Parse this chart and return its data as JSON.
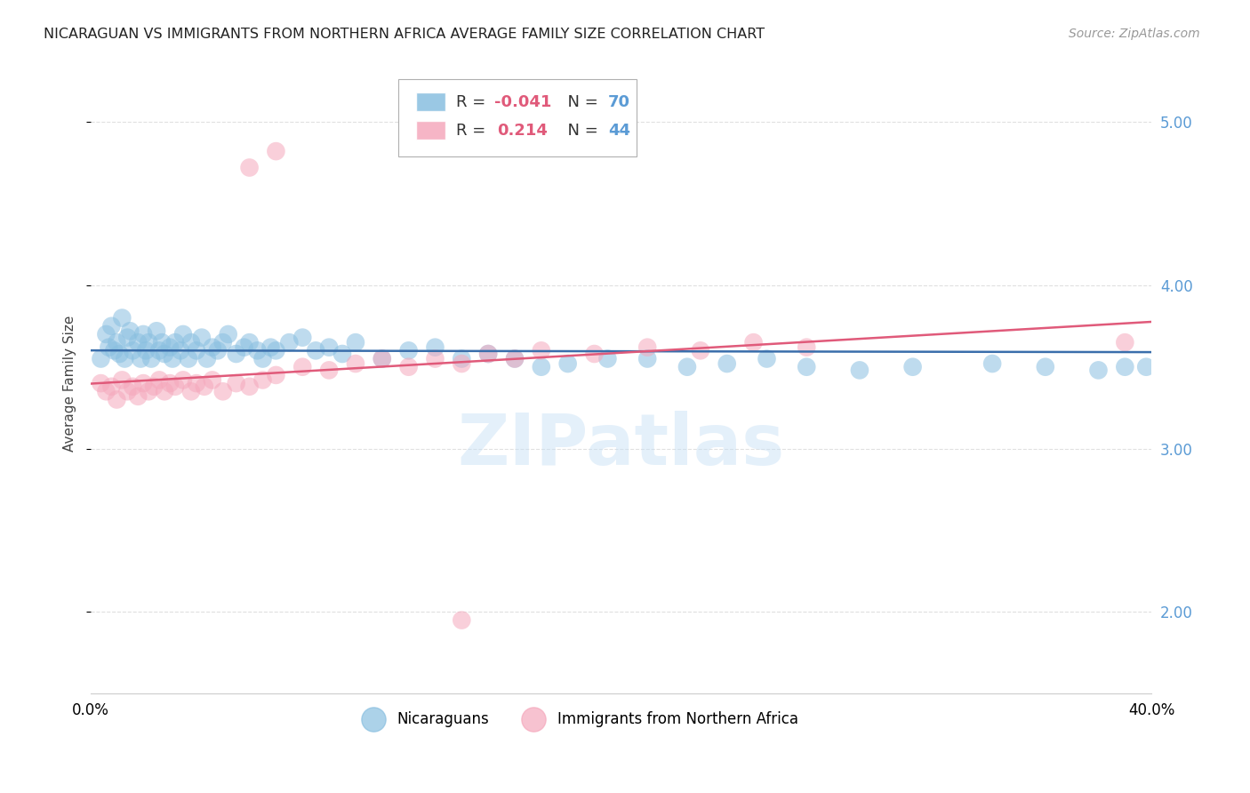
{
  "title": "NICARAGUAN VS IMMIGRANTS FROM NORTHERN AFRICA AVERAGE FAMILY SIZE CORRELATION CHART",
  "source": "Source: ZipAtlas.com",
  "ylabel": "Average Family Size",
  "xlim": [
    0.0,
    0.4
  ],
  "ylim": [
    1.5,
    5.3
  ],
  "yticks": [
    2.0,
    3.0,
    4.0,
    5.0
  ],
  "xticks": [
    0.0,
    0.1,
    0.2,
    0.3,
    0.4
  ],
  "xtick_labels": [
    "0.0%",
    "",
    "",
    "",
    "40.0%"
  ],
  "blue_color": "#89bfe0",
  "pink_color": "#f5a8bc",
  "blue_line_color": "#3a6eab",
  "pink_line_color": "#e05a7a",
  "blue_R": -0.041,
  "blue_N": 70,
  "pink_R": 0.214,
  "pink_N": 44,
  "blue_scatter_x": [
    0.004,
    0.006,
    0.007,
    0.008,
    0.009,
    0.01,
    0.011,
    0.012,
    0.013,
    0.014,
    0.015,
    0.016,
    0.018,
    0.019,
    0.02,
    0.021,
    0.022,
    0.023,
    0.025,
    0.026,
    0.027,
    0.028,
    0.03,
    0.031,
    0.032,
    0.034,
    0.035,
    0.037,
    0.038,
    0.04,
    0.042,
    0.044,
    0.046,
    0.048,
    0.05,
    0.052,
    0.055,
    0.058,
    0.06,
    0.063,
    0.065,
    0.068,
    0.07,
    0.075,
    0.08,
    0.085,
    0.09,
    0.095,
    0.1,
    0.11,
    0.12,
    0.13,
    0.14,
    0.15,
    0.16,
    0.17,
    0.18,
    0.195,
    0.21,
    0.225,
    0.24,
    0.255,
    0.27,
    0.29,
    0.31,
    0.34,
    0.36,
    0.38,
    0.39,
    0.398
  ],
  "blue_scatter_y": [
    3.55,
    3.7,
    3.62,
    3.75,
    3.6,
    3.65,
    3.58,
    3.8,
    3.55,
    3.68,
    3.72,
    3.6,
    3.65,
    3.55,
    3.7,
    3.6,
    3.65,
    3.55,
    3.72,
    3.6,
    3.65,
    3.58,
    3.62,
    3.55,
    3.65,
    3.6,
    3.7,
    3.55,
    3.65,
    3.6,
    3.68,
    3.55,
    3.62,
    3.6,
    3.65,
    3.7,
    3.58,
    3.62,
    3.65,
    3.6,
    3.55,
    3.62,
    3.6,
    3.65,
    3.68,
    3.6,
    3.62,
    3.58,
    3.65,
    3.55,
    3.6,
    3.62,
    3.55,
    3.58,
    3.55,
    3.5,
    3.52,
    3.55,
    3.55,
    3.5,
    3.52,
    3.55,
    3.5,
    3.48,
    3.5,
    3.52,
    3.5,
    3.48,
    3.5,
    3.5
  ],
  "pink_scatter_x": [
    0.004,
    0.006,
    0.008,
    0.01,
    0.012,
    0.014,
    0.016,
    0.018,
    0.02,
    0.022,
    0.024,
    0.026,
    0.028,
    0.03,
    0.032,
    0.035,
    0.038,
    0.04,
    0.043,
    0.046,
    0.05,
    0.055,
    0.06,
    0.065,
    0.07,
    0.08,
    0.09,
    0.1,
    0.11,
    0.12,
    0.13,
    0.14,
    0.15,
    0.16,
    0.17,
    0.19,
    0.21,
    0.23,
    0.25,
    0.27,
    0.14,
    0.39,
    0.06,
    0.07
  ],
  "pink_scatter_y": [
    3.4,
    3.35,
    3.38,
    3.3,
    3.42,
    3.35,
    3.38,
    3.32,
    3.4,
    3.35,
    3.38,
    3.42,
    3.35,
    3.4,
    3.38,
    3.42,
    3.35,
    3.4,
    3.38,
    3.42,
    3.35,
    3.4,
    3.38,
    3.42,
    3.45,
    3.5,
    3.48,
    3.52,
    3.55,
    3.5,
    3.55,
    3.52,
    3.58,
    3.55,
    3.6,
    3.58,
    3.62,
    3.6,
    3.65,
    3.62,
    1.95,
    3.65,
    4.72,
    4.82
  ],
  "watermark": "ZIPatlas",
  "background_color": "#ffffff",
  "grid_color": "#e0e0e0",
  "right_ytick_color": "#5b9bd5"
}
